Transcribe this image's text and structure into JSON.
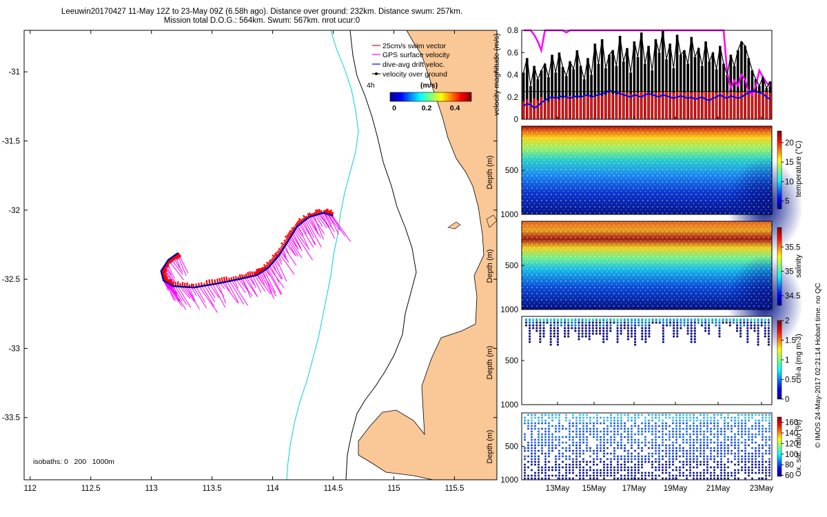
{
  "header": {
    "line1": "Leeuwin20170427 11-May 12Z to 23-May 09Z (6.58h ago). Distance over ground: 232km. Distance swum: 257km.",
    "line2": "Mission total D.O.G.: 564km. Swum: 567km. nrot ucur:0"
  },
  "chart_data": [
    {
      "type": "map",
      "xticks": [
        "112",
        "112.5",
        "113",
        "113.5",
        "114",
        "114.5",
        "115",
        "115.5"
      ],
      "yticks": [
        "-31",
        "-31.5",
        "-32",
        "-32.5",
        "-33",
        "-33.5"
      ],
      "xlim": [
        111.95,
        115.85
      ],
      "ylim": [
        -33.95,
        -30.7
      ],
      "legend": [
        {
          "label": "25cm/s swim vector",
          "color": "#ff0000"
        },
        {
          "label": "GPS surface velocity",
          "color": "#ff00ff"
        },
        {
          "label": "dive-avg drift veloc.",
          "color": "#0000ff"
        },
        {
          "label": "velocity over ground",
          "color": "#000000"
        }
      ],
      "time_marker": "4h",
      "colorbar": {
        "title": "(m/s)",
        "ticks": [
          "0",
          "0.2",
          "0.4"
        ],
        "range": [
          0,
          0.5
        ]
      },
      "isobaths_note": "isobaths: 0   200   1000m",
      "glider_track": [
        [
          113.22,
          -32.31
        ],
        [
          113.14,
          -32.36
        ],
        [
          113.08,
          -32.44
        ],
        [
          113.1,
          -32.51
        ],
        [
          113.18,
          -32.55
        ],
        [
          113.35,
          -32.56
        ],
        [
          113.55,
          -32.53
        ],
        [
          113.72,
          -32.5
        ],
        [
          113.87,
          -32.47
        ],
        [
          113.96,
          -32.42
        ],
        [
          114.05,
          -32.33
        ],
        [
          114.13,
          -32.22
        ],
        [
          114.2,
          -32.12
        ],
        [
          114.3,
          -32.05
        ],
        [
          114.42,
          -32.02
        ],
        [
          114.5,
          -32.04
        ]
      ],
      "colors": {
        "land": "#fac796",
        "isobath_200": "#000000",
        "isobath_1000": "#00d0e0"
      }
    },
    {
      "type": "bar",
      "ylabel": "velocity magnitude (m/s)",
      "ylim": [
        0,
        0.8
      ],
      "yticks": [
        "0",
        "0.2",
        "0.4",
        "0.6",
        "0.8"
      ],
      "reference_line": 0.25,
      "series": [
        {
          "color": "#ff0000",
          "values": [
            0.16,
            0.18,
            0.15,
            0.19,
            0.17,
            0.2,
            0.18,
            0.16,
            0.19,
            0.2,
            0.18,
            0.19,
            0.2,
            0.21,
            0.2,
            0.19,
            0.2,
            0.22,
            0.21,
            0.2,
            0.22,
            0.23,
            0.21,
            0.22,
            0.24,
            0.23,
            0.22,
            0.24,
            0.25,
            0.24,
            0.23,
            0.24,
            0.24,
            0.25,
            0.25,
            0.24,
            0.23,
            0.24,
            0.25,
            0.24,
            0.25,
            0.25,
            0.24,
            0.25,
            0.25,
            0.24,
            0.25,
            0.24,
            0.25,
            0.25,
            0.24,
            0.25,
            0.25,
            0.25,
            0.24,
            0.25,
            0.25,
            0.24,
            0.25,
            0.25,
            0.24,
            0.25,
            0.25,
            0.24,
            0.25,
            0.25,
            0.24,
            0.25,
            0.25,
            0.24
          ]
        },
        {
          "color": "#000000",
          "values": [
            0.42,
            0.55,
            0.3,
            0.48,
            0.36,
            0.44,
            0.5,
            0.38,
            0.58,
            0.42,
            0.6,
            0.47,
            0.39,
            0.52,
            0.45,
            0.62,
            0.48,
            0.36,
            0.55,
            0.4,
            0.68,
            0.5,
            0.72,
            0.46,
            0.58,
            0.62,
            0.48,
            0.75,
            0.52,
            0.64,
            0.42,
            0.7,
            0.56,
            0.78,
            0.5,
            0.66,
            0.44,
            0.72,
            0.6,
            0.8,
            0.54,
            0.68,
            0.46,
            0.76,
            0.58,
            0.62,
            0.5,
            0.74,
            0.56,
            0.64,
            0.48,
            0.7,
            0.52,
            0.6,
            0.45,
            0.66,
            0.5,
            0.4,
            0.58,
            0.48,
            0.62,
            0.7,
            0.66,
            0.55,
            0.44,
            0.36,
            0.3,
            0.38,
            0.28,
            0.34
          ]
        }
      ],
      "lines": [
        {
          "color": "#ff00ff",
          "values": [
            0.8,
            0.8,
            0.8,
            0.76,
            0.7,
            0.62,
            0.8,
            0.8,
            0.8,
            0.8,
            0.8,
            0.8,
            0.78,
            0.8,
            0.8,
            0.8,
            0.8,
            0.8,
            0.8,
            0.8,
            0.8,
            0.8,
            0.8,
            0.8,
            0.8,
            0.8,
            0.8,
            0.8,
            0.8,
            0.8,
            0.8,
            0.8,
            0.8,
            0.8,
            0.8,
            0.8,
            0.8,
            0.8,
            0.8,
            0.8,
            0.8,
            0.8,
            0.8,
            0.8,
            0.8,
            0.8,
            0.8,
            0.8,
            0.8,
            0.8,
            0.8,
            0.8,
            0.8,
            0.8,
            0.8,
            0.8,
            0.8,
            0.42,
            0.28,
            0.35,
            0.3,
            0.4,
            0.36,
            0.25,
            0.22,
            0.3,
            0.44,
            0.38,
            0.33,
            0.3
          ]
        },
        {
          "color": "#0000ff",
          "values": [
            0.12,
            0.14,
            0.13,
            0.1,
            0.12,
            0.15,
            0.17,
            0.19,
            0.2,
            0.19,
            0.2,
            0.21,
            0.2,
            0.19,
            0.2,
            0.21,
            0.2,
            0.21,
            0.22,
            0.2,
            0.21,
            0.22,
            0.23,
            0.24,
            0.26,
            0.25,
            0.24,
            0.23,
            0.22,
            0.21,
            0.2,
            0.22,
            0.21,
            0.2,
            0.22,
            0.23,
            0.22,
            0.21,
            0.2,
            0.22,
            0.21,
            0.2,
            0.19,
            0.2,
            0.21,
            0.2,
            0.19,
            0.2,
            0.18,
            0.19,
            0.2,
            0.18,
            0.17,
            0.19,
            0.2,
            0.22,
            0.2,
            0.19,
            0.21,
            0.2,
            0.19,
            0.2,
            0.22,
            0.24,
            0.26,
            0.25,
            0.24,
            0.23,
            0.2,
            0.18
          ]
        }
      ]
    },
    {
      "type": "heatmap",
      "ylabel": "Depth (m)",
      "yticks": [
        "500",
        "1000"
      ],
      "colorbar_label": "temperature (°C)",
      "colorbar_ticks": [
        "20",
        "15",
        "10",
        "5"
      ],
      "colorbar_range": [
        3,
        23
      ]
    },
    {
      "type": "heatmap",
      "ylabel": "Depth (m)",
      "yticks": [
        "500",
        "1000"
      ],
      "colorbar_label": "salinity",
      "colorbar_ticks": [
        "35.5",
        "35",
        "34.5"
      ],
      "colorbar_range": [
        34.3,
        35.9
      ]
    },
    {
      "type": "scatter",
      "ylabel": "Depth (m)",
      "yticks": [
        "500",
        "1000"
      ],
      "colorbar_label": "chl-a (mg m-3)",
      "colorbar_ticks": [
        "2",
        "1.5",
        "1",
        "0.5",
        "0"
      ],
      "colorbar_range": [
        0,
        2
      ]
    },
    {
      "type": "scatter",
      "ylabel": "Depth (m)",
      "yticks": [
        "500",
        "1000"
      ],
      "colorbar_label": "Ox. sat. ratio (%)",
      "colorbar_ticks": [
        "160",
        "140",
        "120",
        "100",
        "80",
        "60"
      ],
      "colorbar_range": [
        58,
        170
      ]
    }
  ],
  "time_axis": {
    "ticks": [
      "13May",
      "15May",
      "17May",
      "19May",
      "21May",
      "23May"
    ]
  },
  "footer_note": "© IMOS 24-May-2017 02:21:14 Hobart time. no QC"
}
